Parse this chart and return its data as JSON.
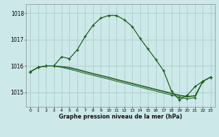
{
  "title": "Graphe pression niveau de la mer (hPa)",
  "bg_color": "#cce8e8",
  "grid_color": "#aacccc",
  "line_color": "#1a5c1a",
  "xlim": [
    -0.5,
    23.5
  ],
  "ylim": [
    1014.45,
    1018.35
  ],
  "yticks": [
    1015,
    1016,
    1017,
    1018
  ],
  "xticks": [
    0,
    1,
    2,
    3,
    4,
    5,
    6,
    7,
    8,
    9,
    10,
    11,
    12,
    13,
    14,
    15,
    16,
    17,
    18,
    19,
    20,
    21,
    22,
    23
  ],
  "line_peak": [
    1015.78,
    1015.95,
    1016.0,
    1016.0,
    1016.35,
    1016.28,
    1016.62,
    1017.12,
    1017.55,
    1017.82,
    1017.92,
    1017.92,
    1017.75,
    1017.5,
    1017.05,
    1016.65,
    1016.25,
    1015.82,
    1015.05,
    1014.72,
    1014.88,
    1015.22,
    1015.42,
    1015.58
  ],
  "line_flat1": [
    1015.78,
    1015.95,
    1016.0,
    1016.0,
    1015.98,
    1015.95,
    1015.88,
    1015.8,
    1015.72,
    1015.65,
    1015.58,
    1015.5,
    1015.42,
    1015.35,
    1015.27,
    1015.2,
    1015.12,
    1015.05,
    1014.97,
    1014.9,
    1014.85,
    1014.88,
    1015.42,
    1015.58
  ],
  "line_flat2": [
    1015.78,
    1015.95,
    1016.0,
    1016.0,
    1015.97,
    1015.92,
    1015.85,
    1015.77,
    1015.7,
    1015.62,
    1015.55,
    1015.47,
    1015.4,
    1015.32,
    1015.25,
    1015.17,
    1015.1,
    1015.02,
    1014.95,
    1014.87,
    1014.82,
    1014.85,
    1015.42,
    1015.58
  ],
  "line_flat3": [
    1015.78,
    1015.95,
    1016.0,
    1016.0,
    1015.95,
    1015.88,
    1015.8,
    1015.72,
    1015.65,
    1015.57,
    1015.5,
    1015.42,
    1015.35,
    1015.27,
    1015.2,
    1015.12,
    1015.05,
    1014.97,
    1014.9,
    1014.82,
    1014.75,
    1014.8,
    1015.42,
    1015.58
  ]
}
